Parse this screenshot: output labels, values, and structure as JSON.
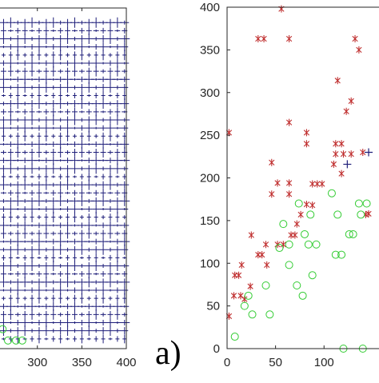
{
  "panel_label": "a)",
  "colors": {
    "axis": "#262626",
    "grid_mark": "#1f1f7a",
    "series_star": "#c03030",
    "series_circle": "#33cc33",
    "series_plus": "#1f1f7a"
  },
  "chart_data": [
    {
      "type": "scatter",
      "title": "",
      "xlabel": "",
      "ylabel": "",
      "xlim": [
        258,
        400
      ],
      "ylim": [
        -10,
        410
      ],
      "x_ticks": [
        300,
        350,
        400
      ],
      "x_tick_labels": [
        "300",
        "350",
        "400"
      ],
      "grid": false,
      "marker_grid": {
        "x_start": 262,
        "x_step": 8,
        "x_end": 398,
        "y_start": 2,
        "y_step": 10,
        "y_end": 400,
        "marker": "+"
      },
      "series": [
        {
          "marker": "o",
          "points": [
            [
              261,
              14
            ],
            [
              267,
              0
            ],
            [
              276,
              0
            ],
            [
              283,
              0
            ]
          ]
        }
      ]
    },
    {
      "type": "scatter",
      "title": "",
      "xlabel": "",
      "ylabel": "",
      "xlim": [
        0,
        160
      ],
      "ylim": [
        0,
        400
      ],
      "x_ticks": [
        0,
        50,
        100
      ],
      "x_tick_labels": [
        "0",
        "50",
        "100"
      ],
      "y_ticks": [
        0,
        50,
        100,
        150,
        200,
        250,
        300,
        350,
        400
      ],
      "y_tick_labels": [
        "0",
        "50",
        "100",
        "150",
        "200",
        "250",
        "300",
        "350",
        "400"
      ],
      "grid": false,
      "series": [
        {
          "marker": "*",
          "points": [
            [
              2,
              253
            ],
            [
              2,
              38
            ],
            [
              7,
              62
            ],
            [
              8,
              86
            ],
            [
              12,
              86
            ],
            [
              15,
              98
            ],
            [
              14,
              62
            ],
            [
              18,
              58
            ],
            [
              24,
              73
            ],
            [
              25,
              133
            ],
            [
              32,
              110
            ],
            [
              32,
              363
            ],
            [
              38,
              363
            ],
            [
              36,
              110
            ],
            [
              40,
              122
            ],
            [
              41,
              98
            ],
            [
              46,
              218
            ],
            [
              46,
              181
            ],
            [
              52,
              194
            ],
            [
              52,
              122
            ],
            [
              56,
              398
            ],
            [
              58,
              122
            ],
            [
              64,
              363
            ],
            [
              64,
              265
            ],
            [
              64,
              194
            ],
            [
              64,
              181
            ],
            [
              66,
              133
            ],
            [
              70,
              133
            ],
            [
              72,
              146
            ],
            [
              76,
              157
            ],
            [
              82,
              169
            ],
            [
              82,
              240
            ],
            [
              82,
              253
            ],
            [
              88,
              193
            ],
            [
              88,
              168
            ],
            [
              93,
              193
            ],
            [
              98,
              193
            ],
            [
              110,
              216
            ],
            [
              112,
              228
            ],
            [
              118,
              240
            ],
            [
              120,
              228
            ],
            [
              112,
              240
            ],
            [
              114,
              314
            ],
            [
              118,
              205
            ],
            [
              123,
              278
            ],
            [
              128,
              290
            ],
            [
              128,
              228
            ],
            [
              132,
              363
            ],
            [
              136,
              350
            ],
            [
              140,
              230
            ],
            [
              143,
              157
            ],
            [
              146,
              158
            ]
          ]
        },
        {
          "marker": "o",
          "points": [
            [
              8,
              14
            ],
            [
              18,
              50
            ],
            [
              22,
              62
            ],
            [
              26,
              40
            ],
            [
              40,
              74
            ],
            [
              44,
              40
            ],
            [
              54,
              118
            ],
            [
              58,
              146
            ],
            [
              64,
              122
            ],
            [
              64,
              98
            ],
            [
              72,
              74
            ],
            [
              74,
              170
            ],
            [
              78,
              62
            ],
            [
              80,
              134
            ],
            [
              84,
              122
            ],
            [
              86,
              157
            ],
            [
              88,
              86
            ],
            [
              92,
              122
            ],
            [
              108,
              182
            ],
            [
              112,
              110
            ],
            [
              114,
              157
            ],
            [
              118,
              110
            ],
            [
              120,
              0
            ],
            [
              126,
              134
            ],
            [
              130,
              134
            ],
            [
              136,
              170
            ],
            [
              138,
              157
            ],
            [
              140,
              0
            ],
            [
              144,
              170
            ]
          ]
        },
        {
          "marker": "+",
          "points": [
            [
              146,
              230
            ],
            [
              124,
              216
            ]
          ]
        }
      ]
    }
  ]
}
